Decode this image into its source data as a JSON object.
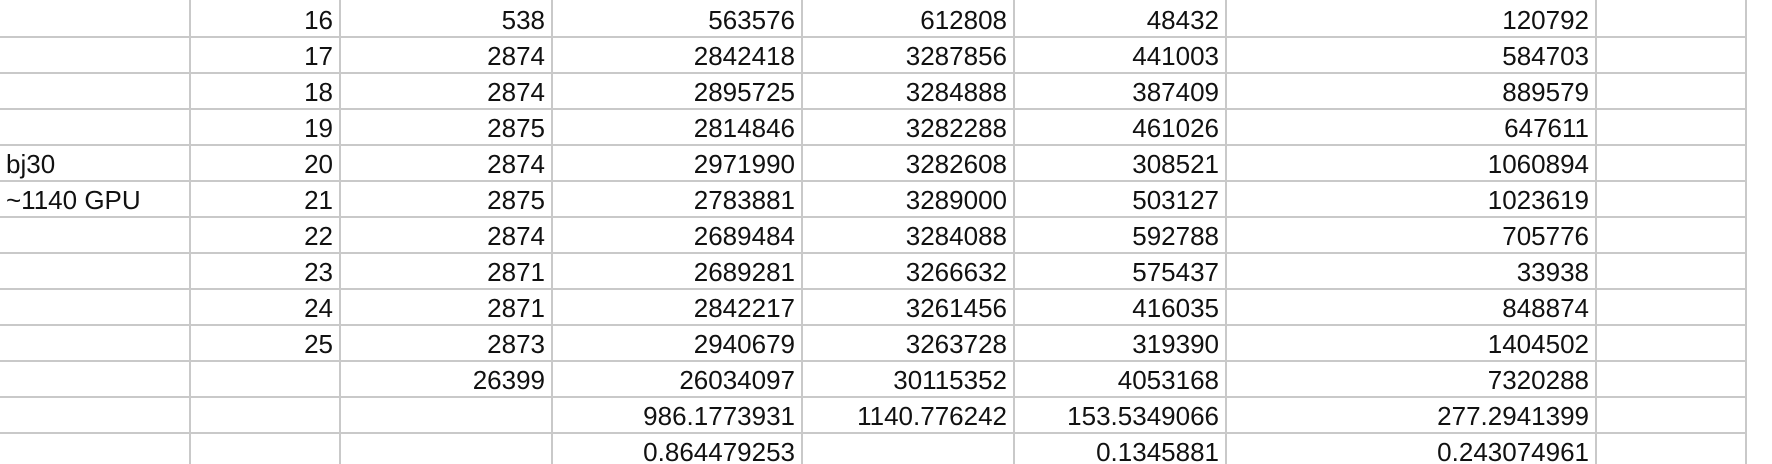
{
  "rows": [
    {
      "label": "",
      "idx": "16",
      "c1": "538",
      "c2": "563576",
      "c3": "612808",
      "c4": "48432",
      "c5": "120792"
    },
    {
      "label": "",
      "idx": "17",
      "c1": "2874",
      "c2": "2842418",
      "c3": "3287856",
      "c4": "441003",
      "c5": "584703"
    },
    {
      "label": "",
      "idx": "18",
      "c1": "2874",
      "c2": "2895725",
      "c3": "3284888",
      "c4": "387409",
      "c5": "889579"
    },
    {
      "label": "",
      "idx": "19",
      "c1": "2875",
      "c2": "2814846",
      "c3": "3282288",
      "c4": "461026",
      "c5": "647611"
    },
    {
      "label": "bj30",
      "idx": "20",
      "c1": "2874",
      "c2": "2971990",
      "c3": "3282608",
      "c4": "308521",
      "c5": "1060894"
    },
    {
      "label": "~1140 GPU",
      "idx": "21",
      "c1": "2875",
      "c2": "2783881",
      "c3": "3289000",
      "c4": "503127",
      "c5": "1023619"
    },
    {
      "label": "",
      "idx": "22",
      "c1": "2874",
      "c2": "2689484",
      "c3": "3284088",
      "c4": "592788",
      "c5": "705776"
    },
    {
      "label": "",
      "idx": "23",
      "c1": "2871",
      "c2": "2689281",
      "c3": "3266632",
      "c4": "575437",
      "c5": "33938"
    },
    {
      "label": "",
      "idx": "24",
      "c1": "2871",
      "c2": "2842217",
      "c3": "3261456",
      "c4": "416035",
      "c5": "848874"
    },
    {
      "label": "",
      "idx": "25",
      "c1": "2873",
      "c2": "2940679",
      "c3": "3263728",
      "c4": "319390",
      "c5": "1404502"
    },
    {
      "label": "",
      "idx": "",
      "c1": "26399",
      "c2": "26034097",
      "c3": "30115352",
      "c4": "4053168",
      "c5": "7320288"
    },
    {
      "label": "",
      "idx": "",
      "c1": "",
      "c2": "986.1773931",
      "c3": "1140.776242",
      "c4": "153.5349066",
      "c5": "277.2941399"
    },
    {
      "label": "",
      "idx": "",
      "c1": "",
      "c2": "0.864479253",
      "c3": "",
      "c4": "0.1345881",
      "c5": "0.243074961"
    }
  ]
}
